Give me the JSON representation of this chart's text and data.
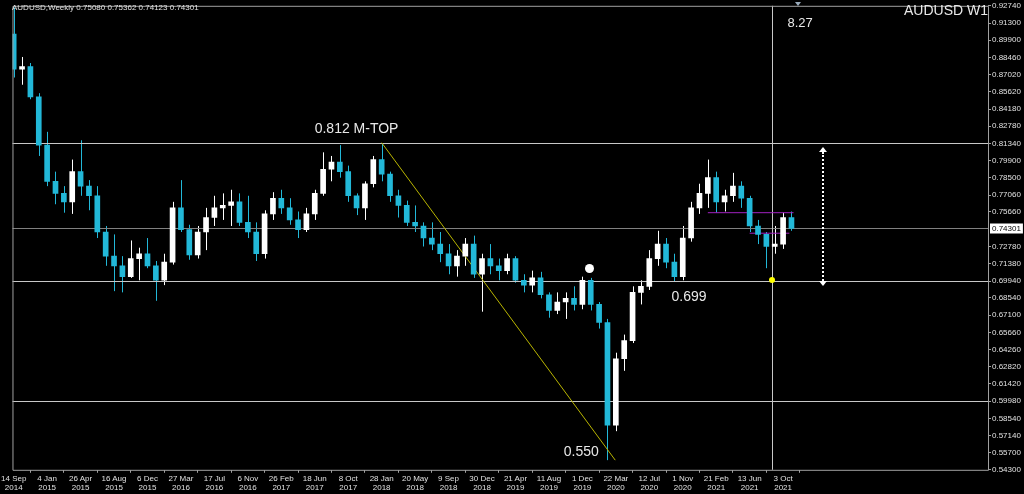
{
  "chart_data": {
    "type": "candlestick",
    "title": "AUDUSD W1",
    "subtitle": "AUDUSD,Weekly 0.75080 0.75362 0.74123 0.74301",
    "x": [
      "2014-09-14",
      "2014-10-12",
      "2014-11-09",
      "2014-12-07",
      "2015-01-04",
      "2015-02-01",
      "2015-03-01",
      "2015-03-29",
      "2015-04-26",
      "2015-05-24",
      "2015-06-21",
      "2015-07-19",
      "2015-08-16",
      "2015-09-13",
      "2015-10-11",
      "2015-11-08",
      "2015-12-06",
      "2016-01-03",
      "2016-01-31",
      "2016-02-28",
      "2016-03-27",
      "2016-04-24",
      "2016-05-22",
      "2016-06-19",
      "2016-07-17",
      "2016-08-14",
      "2016-09-11",
      "2016-10-09",
      "2016-11-06",
      "2016-12-04",
      "2017-01-01",
      "2017-01-29",
      "2017-02-26",
      "2017-03-26",
      "2017-04-23",
      "2017-05-21",
      "2017-06-18",
      "2017-07-16",
      "2017-08-13",
      "2017-09-10",
      "2017-10-08",
      "2017-11-05",
      "2017-12-03",
      "2017-12-31",
      "2018-01-28",
      "2018-02-25",
      "2018-03-25",
      "2018-04-22",
      "2018-05-20",
      "2018-06-17",
      "2018-07-15",
      "2018-08-12",
      "2018-09-09",
      "2018-10-07",
      "2018-11-04",
      "2018-12-02",
      "2018-12-30",
      "2019-01-27",
      "2019-02-24",
      "2019-03-24",
      "2019-04-21",
      "2019-05-19",
      "2019-06-16",
      "2019-07-14",
      "2019-08-11",
      "2019-09-08",
      "2019-10-06",
      "2019-11-03",
      "2019-12-01",
      "2019-12-29",
      "2020-01-26",
      "2020-02-23",
      "2020-03-22",
      "2020-04-19",
      "2020-05-17",
      "2020-06-14",
      "2020-07-12",
      "2020-08-09",
      "2020-09-06",
      "2020-10-04",
      "2020-11-01",
      "2020-11-29",
      "2020-12-27",
      "2021-01-24",
      "2021-02-21",
      "2021-03-21",
      "2021-04-18",
      "2021-05-16",
      "2021-06-13",
      "2021-07-11",
      "2021-08-08",
      "2021-09-05",
      "2021-10-03",
      "2021-10-31"
    ],
    "ohlc": [
      [
        0.904,
        0.926,
        0.868,
        0.875
      ],
      [
        0.875,
        0.885,
        0.862,
        0.877
      ],
      [
        0.877,
        0.88,
        0.85,
        0.852
      ],
      [
        0.852,
        0.855,
        0.803,
        0.812
      ],
      [
        0.812,
        0.823,
        0.778,
        0.782
      ],
      [
        0.782,
        0.79,
        0.763,
        0.772
      ],
      [
        0.772,
        0.778,
        0.756,
        0.765
      ],
      [
        0.765,
        0.8,
        0.755,
        0.79
      ],
      [
        0.79,
        0.816,
        0.77,
        0.778
      ],
      [
        0.778,
        0.783,
        0.758,
        0.77
      ],
      [
        0.77,
        0.778,
        0.735,
        0.74
      ],
      [
        0.74,
        0.745,
        0.712,
        0.72
      ],
      [
        0.72,
        0.738,
        0.691,
        0.712
      ],
      [
        0.712,
        0.72,
        0.69,
        0.703
      ],
      [
        0.703,
        0.733,
        0.702,
        0.718
      ],
      [
        0.718,
        0.727,
        0.7,
        0.722
      ],
      [
        0.722,
        0.735,
        0.71,
        0.712
      ],
      [
        0.712,
        0.716,
        0.683,
        0.7
      ],
      [
        0.7,
        0.722,
        0.696,
        0.715
      ],
      [
        0.715,
        0.765,
        0.713,
        0.76
      ],
      [
        0.76,
        0.783,
        0.74,
        0.742
      ],
      [
        0.742,
        0.746,
        0.717,
        0.721
      ],
      [
        0.721,
        0.745,
        0.718,
        0.74
      ],
      [
        0.74,
        0.76,
        0.725,
        0.752
      ],
      [
        0.752,
        0.77,
        0.745,
        0.76
      ],
      [
        0.76,
        0.772,
        0.75,
        0.762
      ],
      [
        0.762,
        0.775,
        0.745,
        0.765
      ],
      [
        0.765,
        0.772,
        0.745,
        0.748
      ],
      [
        0.748,
        0.77,
        0.735,
        0.74
      ],
      [
        0.74,
        0.748,
        0.716,
        0.722
      ],
      [
        0.722,
        0.758,
        0.718,
        0.755
      ],
      [
        0.755,
        0.773,
        0.75,
        0.768
      ],
      [
        0.768,
        0.775,
        0.755,
        0.76
      ],
      [
        0.76,
        0.768,
        0.746,
        0.75
      ],
      [
        0.75,
        0.757,
        0.735,
        0.742
      ],
      [
        0.742,
        0.76,
        0.74,
        0.755
      ],
      [
        0.755,
        0.775,
        0.75,
        0.772
      ],
      [
        0.772,
        0.806,
        0.77,
        0.792
      ],
      [
        0.792,
        0.803,
        0.782,
        0.798
      ],
      [
        0.798,
        0.812,
        0.785,
        0.79
      ],
      [
        0.79,
        0.795,
        0.765,
        0.77
      ],
      [
        0.77,
        0.772,
        0.754,
        0.76
      ],
      [
        0.76,
        0.782,
        0.75,
        0.78
      ],
      [
        0.78,
        0.803,
        0.777,
        0.8
      ],
      [
        0.8,
        0.8135,
        0.782,
        0.788
      ],
      [
        0.788,
        0.79,
        0.765,
        0.77
      ],
      [
        0.77,
        0.775,
        0.752,
        0.762
      ],
      [
        0.762,
        0.766,
        0.745,
        0.748
      ],
      [
        0.748,
        0.762,
        0.74,
        0.745
      ],
      [
        0.745,
        0.748,
        0.728,
        0.735
      ],
      [
        0.735,
        0.748,
        0.725,
        0.73
      ],
      [
        0.73,
        0.74,
        0.715,
        0.722
      ],
      [
        0.722,
        0.73,
        0.705,
        0.712
      ],
      [
        0.712,
        0.725,
        0.703,
        0.72
      ],
      [
        0.72,
        0.735,
        0.712,
        0.73
      ],
      [
        0.73,
        0.737,
        0.702,
        0.705
      ],
      [
        0.705,
        0.722,
        0.674,
        0.718
      ],
      [
        0.718,
        0.73,
        0.705,
        0.712
      ],
      [
        0.712,
        0.718,
        0.7,
        0.708
      ],
      [
        0.708,
        0.722,
        0.705,
        0.718
      ],
      [
        0.718,
        0.72,
        0.698,
        0.7
      ],
      [
        0.7,
        0.705,
        0.69,
        0.696
      ],
      [
        0.696,
        0.708,
        0.69,
        0.702
      ],
      [
        0.702,
        0.707,
        0.685,
        0.688
      ],
      [
        0.688,
        0.69,
        0.669,
        0.675
      ],
      [
        0.675,
        0.69,
        0.672,
        0.682
      ],
      [
        0.682,
        0.69,
        0.668,
        0.685
      ],
      [
        0.685,
        0.695,
        0.675,
        0.68
      ],
      [
        0.68,
        0.703,
        0.676,
        0.7
      ],
      [
        0.7,
        0.702,
        0.675,
        0.68
      ],
      [
        0.68,
        0.682,
        0.66,
        0.665
      ],
      [
        0.665,
        0.668,
        0.551,
        0.58
      ],
      [
        0.58,
        0.64,
        0.575,
        0.635
      ],
      [
        0.635,
        0.655,
        0.625,
        0.65
      ],
      [
        0.65,
        0.695,
        0.648,
        0.69
      ],
      [
        0.69,
        0.7,
        0.68,
        0.695
      ],
      [
        0.695,
        0.725,
        0.692,
        0.718
      ],
      [
        0.718,
        0.741,
        0.712,
        0.73
      ],
      [
        0.73,
        0.735,
        0.71,
        0.715
      ],
      [
        0.715,
        0.722,
        0.699,
        0.703
      ],
      [
        0.703,
        0.745,
        0.7,
        0.735
      ],
      [
        0.735,
        0.765,
        0.732,
        0.76
      ],
      [
        0.76,
        0.78,
        0.755,
        0.772
      ],
      [
        0.772,
        0.8,
        0.76,
        0.785
      ],
      [
        0.785,
        0.79,
        0.756,
        0.765
      ],
      [
        0.765,
        0.775,
        0.757,
        0.77
      ],
      [
        0.77,
        0.789,
        0.765,
        0.778
      ],
      [
        0.778,
        0.782,
        0.76,
        0.768
      ],
      [
        0.768,
        0.77,
        0.74,
        0.745
      ],
      [
        0.745,
        0.75,
        0.73,
        0.738
      ],
      [
        0.738,
        0.74,
        0.71,
        0.728
      ],
      [
        0.728,
        0.745,
        0.722,
        0.73
      ],
      [
        0.73,
        0.756,
        0.726,
        0.752
      ],
      [
        0.752,
        0.757,
        0.741,
        0.74301
      ]
    ],
    "colors": [
      "#22b8d8",
      "#ffffff",
      "#22b8d8",
      "#22b8d8",
      "#22b8d8",
      "#22b8d8",
      "#22b8d8",
      "#ffffff",
      "#22b8d8",
      "#22b8d8",
      "#22b8d8",
      "#22b8d8",
      "#22b8d8",
      "#22b8d8",
      "#ffffff",
      "#ffffff",
      "#22b8d8",
      "#22b8d8",
      "#ffffff",
      "#ffffff",
      "#22b8d8",
      "#22b8d8",
      "#ffffff",
      "#ffffff",
      "#ffffff",
      "#ffffff",
      "#ffffff",
      "#22b8d8",
      "#22b8d8",
      "#22b8d8",
      "#ffffff",
      "#ffffff",
      "#22b8d8",
      "#22b8d8",
      "#22b8d8",
      "#ffffff",
      "#ffffff",
      "#ffffff",
      "#ffffff",
      "#22b8d8",
      "#22b8d8",
      "#22b8d8",
      "#ffffff",
      "#ffffff",
      "#22b8d8",
      "#22b8d8",
      "#22b8d8",
      "#22b8d8",
      "#22b8d8",
      "#22b8d8",
      "#22b8d8",
      "#22b8d8",
      "#22b8d8",
      "#ffffff",
      "#ffffff",
      "#22b8d8",
      "#ffffff",
      "#22b8d8",
      "#22b8d8",
      "#ffffff",
      "#22b8d8",
      "#22b8d8",
      "#ffffff",
      "#22b8d8",
      "#22b8d8",
      "#ffffff",
      "#ffffff",
      "#22b8d8",
      "#ffffff",
      "#22b8d8",
      "#22b8d8",
      "#22b8d8",
      "#ffffff",
      "#ffffff",
      "#ffffff",
      "#ffffff",
      "#ffffff",
      "#ffffff",
      "#22b8d8",
      "#22b8d8",
      "#ffffff",
      "#ffffff",
      "#ffffff",
      "#ffffff",
      "#22b8d8",
      "#ffffff",
      "#ffffff",
      "#22b8d8",
      "#22b8d8",
      "#22b8d8",
      "#22b8d8",
      "#ffffff",
      "#ffffff",
      "#22b8d8"
    ],
    "series": [
      {
        "type": "line",
        "x": [
          "2018-01-28",
          "2020-03-20"
        ],
        "values": [
          0.814,
          0.551
        ],
        "color": "#b8b400"
      },
      {
        "type": "line",
        "x": [
          "2021-01-24",
          "2021-11-07"
        ],
        "values": [
          0.756,
          0.756
        ],
        "color": "#a020c0"
      },
      {
        "type": "line",
        "x": [
          "2021-06-13",
          "2021-10-24"
        ],
        "values": [
          0.739,
          0.739
        ],
        "color": "#a020c0"
      }
    ],
    "xlim": [
      "2014-09-10",
      "2023-08-20"
    ],
    "xticks": [
      {
        "value": "2014-09-14",
        "label": "14 Sep 2014"
      },
      {
        "value": "2015-01-04",
        "label": "4 Jan 2015"
      },
      {
        "value": "2015-04-26",
        "label": "26 Apr 2015"
      },
      {
        "value": "2015-08-16",
        "label": "16 Aug 2015"
      },
      {
        "value": "2015-12-06",
        "label": "6 Dec 2015"
      },
      {
        "value": "2016-03-27",
        "label": "27 Mar 2016"
      },
      {
        "value": "2016-07-17",
        "label": "17 Jul 2016"
      },
      {
        "value": "2016-11-06",
        "label": "6 Nov 2016"
      },
      {
        "value": "2017-02-26",
        "label": "26 Feb 2017"
      },
      {
        "value": "2017-06-18",
        "label": "18 Jun 2017"
      },
      {
        "value": "2017-10-08",
        "label": "8 Oct 2017"
      },
      {
        "value": "2018-01-28",
        "label": "28 Jan 2018"
      },
      {
        "value": "2018-05-20",
        "label": "20 May 2018"
      },
      {
        "value": "2018-09-09",
        "label": "9 Sep 2018"
      },
      {
        "value": "2018-12-30",
        "label": "30 Dec 2018"
      },
      {
        "value": "2019-04-21",
        "label": "21 Apr 2019"
      },
      {
        "value": "2019-08-11",
        "label": "11 Aug 2019"
      },
      {
        "value": "2019-12-01",
        "label": "1 Dec 2019"
      },
      {
        "value": "2020-03-22",
        "label": "22 Mar 2020"
      },
      {
        "value": "2020-07-12",
        "label": "12 Jul 2020"
      },
      {
        "value": "2020-11-01",
        "label": "1 Nov 2020"
      },
      {
        "value": "2021-02-21",
        "label": "21 Feb 2021"
      },
      {
        "value": "2021-06-13",
        "label": "13 Jun 2021"
      },
      {
        "value": "2021-10-03",
        "label": "3 Oct 2021"
      }
    ],
    "ylim": [
      0.543,
      0.9274
    ],
    "yticks": [
      {
        "value": 0.9274,
        "label": "0.92740"
      },
      {
        "value": 0.913,
        "label": "0.91300"
      },
      {
        "value": 0.899,
        "label": "0.89900"
      },
      {
        "value": 0.8846,
        "label": "0.88460"
      },
      {
        "value": 0.8702,
        "label": "0.87020"
      },
      {
        "value": 0.8562,
        "label": "0.85620"
      },
      {
        "value": 0.8418,
        "label": "0.84180"
      },
      {
        "value": 0.8278,
        "label": "0.82780"
      },
      {
        "value": 0.8134,
        "label": "0.81340"
      },
      {
        "value": 0.799,
        "label": "0.79900"
      },
      {
        "value": 0.785,
        "label": "0.78500"
      },
      {
        "value": 0.7706,
        "label": "0.77060"
      },
      {
        "value": 0.7566,
        "label": "0.75660"
      },
      {
        "value": 0.7278,
        "label": "0.72780"
      },
      {
        "value": 0.7138,
        "label": "0.71380"
      },
      {
        "value": 0.6994,
        "label": "0.69940"
      },
      {
        "value": 0.6854,
        "label": "0.68540"
      },
      {
        "value": 0.671,
        "label": "0.67100"
      },
      {
        "value": 0.6566,
        "label": "0.65660"
      },
      {
        "value": 0.6426,
        "label": "0.64260"
      },
      {
        "value": 0.6282,
        "label": "0.62820"
      },
      {
        "value": 0.6142,
        "label": "0.61420"
      },
      {
        "value": 0.5998,
        "label": "0.59980"
      },
      {
        "value": 0.5854,
        "label": "0.58540"
      },
      {
        "value": 0.5714,
        "label": "0.57140"
      },
      {
        "value": 0.557,
        "label": "0.55700"
      },
      {
        "value": 0.543,
        "label": "0.54300"
      }
    ],
    "ref_lines": [
      {
        "axis": "y",
        "value": 0.8134,
        "color": "#c8c8c8"
      },
      {
        "axis": "y",
        "value": 0.74301,
        "label": "0.74301",
        "color": "#808080"
      },
      {
        "axis": "y",
        "value": 0.6994,
        "color": "#c8c8c8"
      },
      {
        "axis": "y",
        "value": 0.5998,
        "color": "#c8c8c8"
      },
      {
        "axis": "x",
        "value": "2021-08-27",
        "label": "8.27",
        "color": "#c8c8c8"
      }
    ],
    "annotations": [
      {
        "text": "0.812 M-TOP",
        "x": "2017-11-05",
        "y": 0.8134
      },
      {
        "text": "0.699",
        "x": "2020-11-22",
        "y": 0.6994
      },
      {
        "text": "0.550",
        "x": "2020-03-20",
        "y": 0.551
      }
    ]
  }
}
